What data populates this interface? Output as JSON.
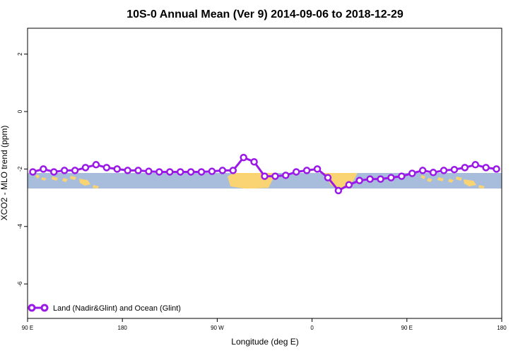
{
  "chart_data": {
    "type": "line",
    "title": "10S-0 Annual Mean (Ver 9)   2014-09-06 to 2018-12-29",
    "xlabel": "Longitude (deg E)",
    "ylabel": "XCO2 - MLO trend (ppm)",
    "xlim": [
      90,
      540
    ],
    "ylim": [
      -7.2,
      2.9
    ],
    "xticks": [
      {
        "value": 90,
        "label": "90 E"
      },
      {
        "value": 180,
        "label": "180"
      },
      {
        "value": 270,
        "label": "90 W"
      },
      {
        "value": 360,
        "label": "0"
      },
      {
        "value": 450,
        "label": "90 E"
      },
      {
        "value": 540,
        "label": "180"
      }
    ],
    "yticks": [
      {
        "value": 2,
        "label": "2"
      },
      {
        "value": 0,
        "label": "0"
      },
      {
        "value": -2,
        "label": "-2"
      },
      {
        "value": -4,
        "label": "-4"
      },
      {
        "value": -6,
        "label": "-6"
      }
    ],
    "legend": {
      "position": "bottom-left"
    },
    "series": [
      {
        "name": "Land (Nadir&Glint) and Ocean (Glint)",
        "color": "#9a19e6",
        "x": [
          95,
          105,
          115,
          125,
          135,
          145,
          155,
          165,
          175,
          185,
          195,
          205,
          215,
          225,
          235,
          245,
          255,
          265,
          275,
          285,
          295,
          305,
          315,
          325,
          335,
          345,
          355,
          365,
          375,
          385,
          395,
          405,
          415,
          425,
          435,
          445,
          455,
          465,
          475,
          485,
          495,
          505,
          515,
          525,
          535
        ],
        "y": [
          -2.1,
          -2.0,
          -2.1,
          -2.05,
          -2.05,
          -1.95,
          -1.85,
          -1.95,
          -2.0,
          -2.05,
          -2.05,
          -2.08,
          -2.1,
          -2.1,
          -2.1,
          -2.1,
          -2.1,
          -2.08,
          -2.05,
          -2.05,
          -1.6,
          -1.75,
          -2.25,
          -2.25,
          -2.22,
          -2.1,
          -2.05,
          -2.0,
          -2.3,
          -2.75,
          -2.55,
          -2.4,
          -2.35,
          -2.35,
          -2.3,
          -2.25,
          -2.15,
          -2.05,
          -2.12,
          -2.05,
          -2.02,
          -1.95,
          -1.85,
          -1.95,
          -2.0
        ]
      }
    ],
    "background_map": {
      "ocean_color": "#a7bddb",
      "land_color": "#fad472",
      "lat_band": [
        -10,
        0
      ]
    }
  }
}
